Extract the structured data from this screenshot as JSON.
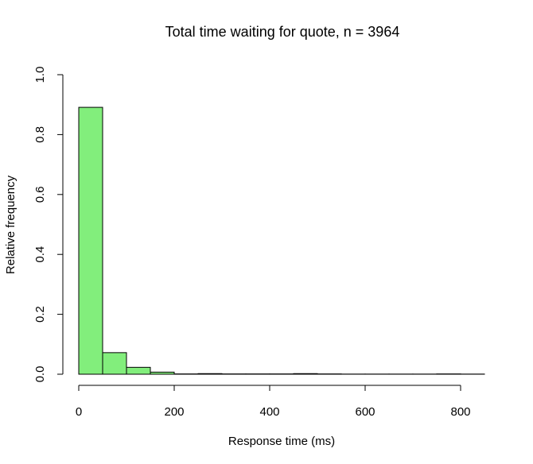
{
  "chart_data": {
    "type": "bar",
    "title": "Total time waiting for quote, n = 3964",
    "xlabel": "Response time (ms)",
    "ylabel": "Relative frequency",
    "bar_color": "#82ee7c",
    "bin_width": 50,
    "bins": [
      {
        "x0": 0,
        "x1": 50,
        "value": 0.891
      },
      {
        "x0": 50,
        "x1": 100,
        "value": 0.072
      },
      {
        "x0": 100,
        "x1": 150,
        "value": 0.023
      },
      {
        "x0": 150,
        "x1": 200,
        "value": 0.007
      },
      {
        "x0": 200,
        "x1": 250,
        "value": 0.001
      },
      {
        "x0": 250,
        "x1": 300,
        "value": 0.002
      },
      {
        "x0": 300,
        "x1": 350,
        "value": 0.001
      },
      {
        "x0": 350,
        "x1": 400,
        "value": 0.001
      },
      {
        "x0": 400,
        "x1": 450,
        "value": 0.001
      },
      {
        "x0": 450,
        "x1": 500,
        "value": 0.002
      },
      {
        "x0": 500,
        "x1": 550,
        "value": 0.001
      },
      {
        "x0": 550,
        "x1": 600,
        "value": 0.0005
      },
      {
        "x0": 600,
        "x1": 650,
        "value": 0.0005
      },
      {
        "x0": 650,
        "x1": 700,
        "value": 0.0005
      },
      {
        "x0": 700,
        "x1": 750,
        "value": 0.0005
      },
      {
        "x0": 750,
        "x1": 800,
        "value": 0.001
      },
      {
        "x0": 800,
        "x1": 850,
        "value": 0.0005
      }
    ],
    "xlim": [
      0,
      850
    ],
    "ylim": [
      0,
      1
    ],
    "x_ticks": [
      0,
      200,
      400,
      600,
      800
    ],
    "x_tick_labels": [
      "0",
      "200",
      "400",
      "600",
      "800"
    ],
    "y_ticks": [
      0,
      0.2,
      0.4,
      0.6,
      0.8,
      1.0
    ],
    "y_tick_labels": [
      "0.0",
      "0.2",
      "0.4",
      "0.6",
      "0.8",
      "1.0"
    ],
    "grid": false,
    "legend": "none"
  }
}
